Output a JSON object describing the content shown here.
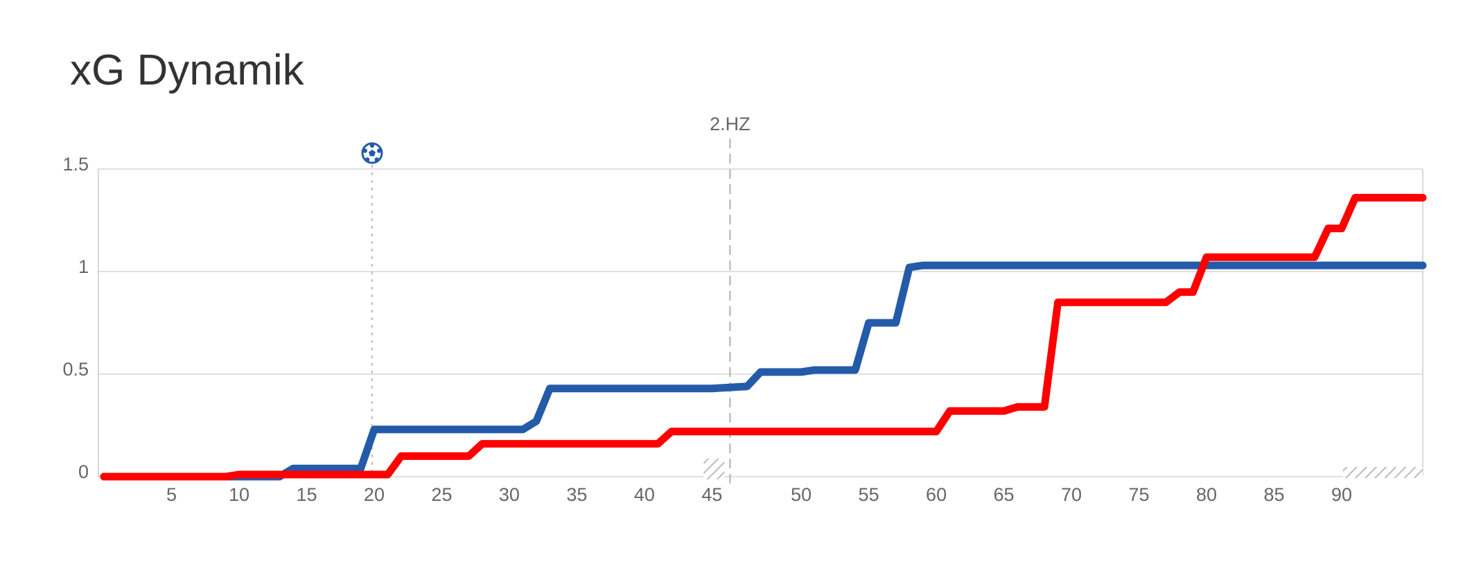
{
  "title": "xG Dynamik",
  "chart_data": {
    "type": "line",
    "title": "xG Dynamik",
    "xlabel": "",
    "ylabel": "",
    "xlim": [
      0,
      96
    ],
    "ylim": [
      0,
      1.5
    ],
    "x_ticks": [
      "5",
      "10",
      "15",
      "20",
      "25",
      "30",
      "35",
      "40",
      "45",
      "50",
      "55",
      "60",
      "65",
      "70",
      "75",
      "80",
      "85",
      "90"
    ],
    "y_ticks": [
      "0",
      "0.5",
      "1",
      "1.5"
    ],
    "halftime_label": "2.HZ",
    "halftime_minute": 45,
    "goal_minute": 20,
    "goal_icon": "soccer-ball-icon",
    "grid": true,
    "series": [
      {
        "color": "#245BA8",
        "points": [
          [
            0,
            0
          ],
          [
            13,
            0
          ],
          [
            14,
            0.04
          ],
          [
            19,
            0.04
          ],
          [
            20,
            0.23
          ],
          [
            31,
            0.23
          ],
          [
            32,
            0.27
          ],
          [
            33,
            0.43
          ],
          [
            45,
            0.43
          ],
          [
            46,
            0.44
          ],
          [
            47,
            0.51
          ],
          [
            50,
            0.51
          ],
          [
            51,
            0.52
          ],
          [
            54,
            0.52
          ],
          [
            55,
            0.75
          ],
          [
            57,
            0.75
          ],
          [
            58,
            1.02
          ],
          [
            59,
            1.03
          ],
          [
            96,
            1.03
          ]
        ]
      },
      {
        "color": "#FF0000",
        "points": [
          [
            0,
            0
          ],
          [
            9,
            0
          ],
          [
            10,
            0.01
          ],
          [
            19,
            0.01
          ],
          [
            21,
            0.01
          ],
          [
            22,
            0.1
          ],
          [
            27,
            0.1
          ],
          [
            28,
            0.16
          ],
          [
            41,
            0.16
          ],
          [
            42,
            0.22
          ],
          [
            60,
            0.22
          ],
          [
            61,
            0.32
          ],
          [
            65,
            0.32
          ],
          [
            66,
            0.34
          ],
          [
            68,
            0.34
          ],
          [
            69,
            0.85
          ],
          [
            77,
            0.85
          ],
          [
            78,
            0.9
          ],
          [
            79,
            0.9
          ],
          [
            80,
            1.07
          ],
          [
            88,
            1.07
          ],
          [
            89,
            1.21
          ],
          [
            90,
            1.21
          ],
          [
            91,
            1.36
          ],
          [
            96,
            1.36
          ]
        ]
      }
    ]
  }
}
